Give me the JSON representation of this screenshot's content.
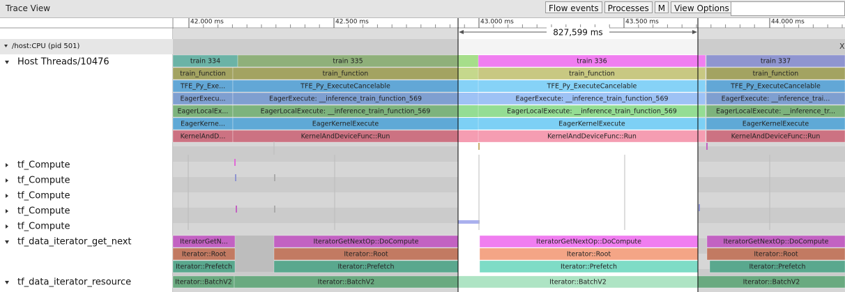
{
  "header": {
    "title": "Trace View",
    "buttons": [
      "Flow events",
      "Processes",
      "M",
      "View Options"
    ]
  },
  "ruler": {
    "ticks": [
      "42.000 ms",
      "42.500 ms",
      "43.000 ms",
      "43.500 ms",
      "44.000 ms"
    ],
    "selection": "827,599 ms"
  },
  "process": {
    "label": "/host:CPU (pid 501)",
    "close": "X"
  },
  "threads": [
    {
      "name": "Host Threads/10476",
      "rows": [
        [
          "train 334",
          "train 335",
          "train 336",
          "train 337"
        ],
        [
          "train_function",
          "train_function",
          "train_function",
          "train_function"
        ],
        [
          "TFE_Py_Exe...",
          "TFE_Py_ExecuteCancelable",
          "TFE_Py_ExecuteCancelable",
          "TFE_Py_ExecuteCancelable"
        ],
        [
          "EagerExecu...",
          "EagerExecute: __inference_train_function_569",
          "EagerExecute: __inference_train_function_569",
          "EagerExecute: __inference_trai..."
        ],
        [
          "EagerLocalEx...",
          "EagerLocalExecute: __inference_train_function_569",
          "EagerLocalExecute: __inference_train_function_569",
          "EagerLocalExecute: __inference_tr..."
        ],
        [
          "EagerKerne...",
          "EagerKernelExecute",
          "EagerKernelExecute",
          "EagerKernelExecute"
        ],
        [
          "KernelAndD...",
          "KernelAndDeviceFunc::Run",
          "KernelAndDeviceFunc::Run",
          "KernelAndDeviceFunc::Run"
        ]
      ]
    },
    {
      "name": "tf_Compute"
    },
    {
      "name": "tf_Compute"
    },
    {
      "name": "tf_Compute"
    },
    {
      "name": "tf_Compute"
    },
    {
      "name": "tf_Compute"
    },
    {
      "name": "tf_data_iterator_get_next",
      "rows": [
        [
          "IteratorGetN...",
          "IteratorGetNextOp::DoCompute",
          "IteratorGetNextOp::DoCompute",
          "IteratorGetNextOp::DoCompute"
        ],
        [
          "Iterator::Root",
          "Iterator::Root",
          "Iterator::Root",
          "Iterator::Root"
        ],
        [
          "Iterator::Prefetch",
          "Iterator::Prefetch",
          "Iterator::Prefetch",
          "Iterator::Prefetch"
        ]
      ]
    },
    {
      "name": "tf_data_iterator_resource",
      "rows": [
        [
          "Iterator::BatchV2",
          "Iterator::BatchV2",
          "Iterator::BatchV2",
          "Iterator::BatchV2"
        ]
      ]
    }
  ]
}
